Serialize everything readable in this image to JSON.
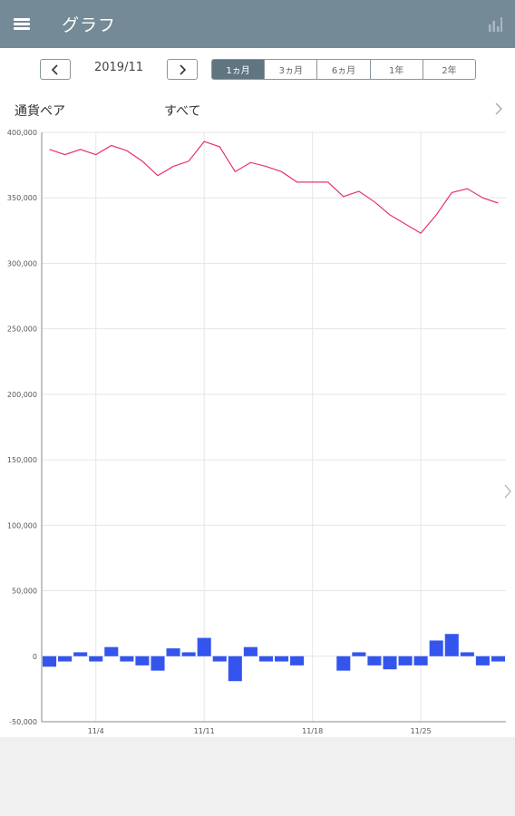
{
  "appbar": {
    "title": "グラフ",
    "menu_icon": "hamburger-menu-icon",
    "chart_icon": "bar-chart-icon",
    "bg_color": "#758a97"
  },
  "period_nav": {
    "prev_icon": "chevron-left-icon",
    "next_icon": "chevron-right-icon",
    "month": "2019/11"
  },
  "ranges": [
    {
      "label": "1ヵ月",
      "active": true
    },
    {
      "label": "3ヵ月",
      "active": false
    },
    {
      "label": "6ヵ月",
      "active": false
    },
    {
      "label": "1年",
      "active": false
    },
    {
      "label": "2年",
      "active": false
    }
  ],
  "filter": {
    "label": "通貨ペア",
    "value": "すべて"
  },
  "chart_data": {
    "type": "line",
    "ylim": [
      -50000,
      400000
    ],
    "yticks": [
      "-50,000",
      "0",
      "50,000",
      "100,000",
      "150,000",
      "200,000",
      "250,000",
      "300,000",
      "350,000",
      "400,000"
    ],
    "ytick_values": [
      -50000,
      0,
      50000,
      100000,
      150000,
      200000,
      250000,
      300000,
      350000,
      400000
    ],
    "x_labels": [
      {
        "label": "11/4",
        "index": 3
      },
      {
        "label": "11/11",
        "index": 10
      },
      {
        "label": "11/18",
        "index": 17
      },
      {
        "label": "11/25",
        "index": 24
      }
    ],
    "days": 30,
    "grid": true,
    "series": [
      {
        "kind": "line",
        "color": "#e8336a",
        "values": [
          387000,
          383000,
          387000,
          383000,
          390000,
          386000,
          378000,
          367000,
          374000,
          378000,
          393000,
          389000,
          370000,
          377000,
          374000,
          370000,
          362000,
          362000,
          362000,
          351000,
          355000,
          347000,
          337000,
          330000,
          323000,
          337000,
          354000,
          357000,
          350000,
          346000
        ]
      },
      {
        "kind": "bar",
        "color": "#3355ee",
        "values": [
          -8000,
          -4000,
          3000,
          -4000,
          7000,
          -4000,
          -7000,
          -11000,
          6000,
          3000,
          14000,
          -4000,
          -19000,
          7000,
          -4000,
          -4000,
          -7000,
          0,
          0,
          -11000,
          3000,
          -7000,
          -10000,
          -7000,
          -7000,
          12000,
          17000,
          3000,
          -7000,
          -4000
        ]
      }
    ]
  }
}
